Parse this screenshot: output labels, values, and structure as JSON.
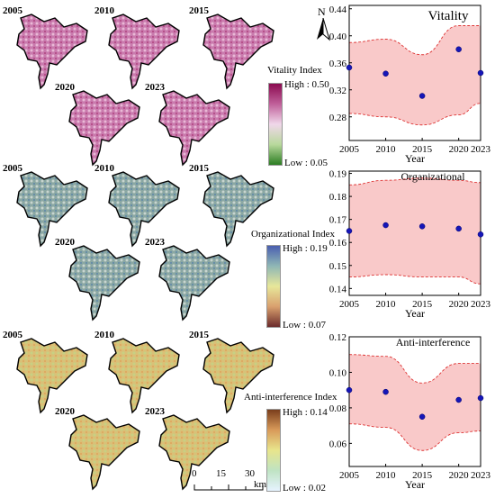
{
  "maps": {
    "years": [
      "2005",
      "2010",
      "2015",
      "2020",
      "2023"
    ],
    "vitality_legend": {
      "title": "Vitality Index",
      "high": "High : 0.50",
      "low": "Low : 0.05",
      "colors": [
        "#8b0a50",
        "#c0609a",
        "#f0d7ea",
        "#b8d99c",
        "#2b7d22"
      ],
      "map_colors": [
        "#c97aad",
        "#e9b9d6",
        "#b0427f"
      ]
    },
    "org_legend": {
      "title": "Organizational Index",
      "high": "High : 0.19",
      "low": "Low : 0.07",
      "colors": [
        "#4a5fb0",
        "#8fb7b5",
        "#e7e79a",
        "#d9a06e",
        "#6b2b2b"
      ],
      "map_colors": [
        "#8aa7a3",
        "#c9d5cf",
        "#5d86a8"
      ]
    },
    "anti_legend": {
      "title": "Anti-interference Index",
      "high": "High : 0.14",
      "low": "Low : 0.02",
      "colors": [
        "#7a3e1c",
        "#d89a5a",
        "#e8e58c",
        "#bfe3c3",
        "#e6f3ff"
      ],
      "map_colors": [
        "#d9c077",
        "#c6d183",
        "#e0a35b"
      ]
    },
    "scale": {
      "ticks": [
        "0",
        "15",
        "30"
      ],
      "unit": "km"
    },
    "north": "N"
  },
  "chart_data": [
    {
      "type": "scatter",
      "title": "Vitality",
      "xlabel": "Year",
      "ylabel": "",
      "x": [
        2005,
        2010,
        2015,
        2020,
        2023
      ],
      "y": [
        0.353,
        0.344,
        0.311,
        0.38,
        0.345
      ],
      "band_upper": [
        0.39,
        0.395,
        0.372,
        0.415,
        0.415
      ],
      "band_lower": [
        0.285,
        0.28,
        0.268,
        0.283,
        0.3
      ],
      "xlim": [
        2005,
        2023
      ],
      "ylim": [
        0.245,
        0.445
      ],
      "yticks": [
        "0.28",
        "0.32",
        "0.36",
        "0.40",
        "0.44"
      ],
      "ytick_values": [
        0.28,
        0.32,
        0.36,
        0.4,
        0.44
      ]
    },
    {
      "type": "scatter",
      "title": "Organizational",
      "xlabel": "Year",
      "ylabel": "",
      "x": [
        2005,
        2010,
        2015,
        2020,
        2023
      ],
      "y": [
        0.165,
        0.1675,
        0.167,
        0.166,
        0.1635
      ],
      "band_upper": [
        0.185,
        0.187,
        0.188,
        0.187,
        0.186
      ],
      "band_lower": [
        0.145,
        0.146,
        0.145,
        0.145,
        0.142
      ],
      "xlim": [
        2005,
        2023
      ],
      "ylim": [
        0.137,
        0.191
      ],
      "yticks": [
        "0.14",
        "0.15",
        "0.16",
        "0.17",
        "0.18",
        "0.19"
      ],
      "ytick_values": [
        0.14,
        0.15,
        0.16,
        0.17,
        0.18,
        0.19
      ]
    },
    {
      "type": "scatter",
      "title": "Anti-interference",
      "xlabel": "Year",
      "ylabel": "",
      "x": [
        2005,
        2010,
        2015,
        2020,
        2023
      ],
      "y": [
        0.09,
        0.089,
        0.075,
        0.0845,
        0.0855
      ],
      "band_upper": [
        0.11,
        0.109,
        0.094,
        0.105,
        0.105
      ],
      "band_lower": [
        0.071,
        0.069,
        0.056,
        0.066,
        0.067
      ],
      "xlim": [
        2005,
        2023
      ],
      "ylim": [
        0.047,
        0.12
      ],
      "yticks": [
        "0.06",
        "0.08",
        "0.10",
        "0.12"
      ],
      "ytick_values": [
        0.06,
        0.08,
        0.1,
        0.12
      ]
    }
  ]
}
